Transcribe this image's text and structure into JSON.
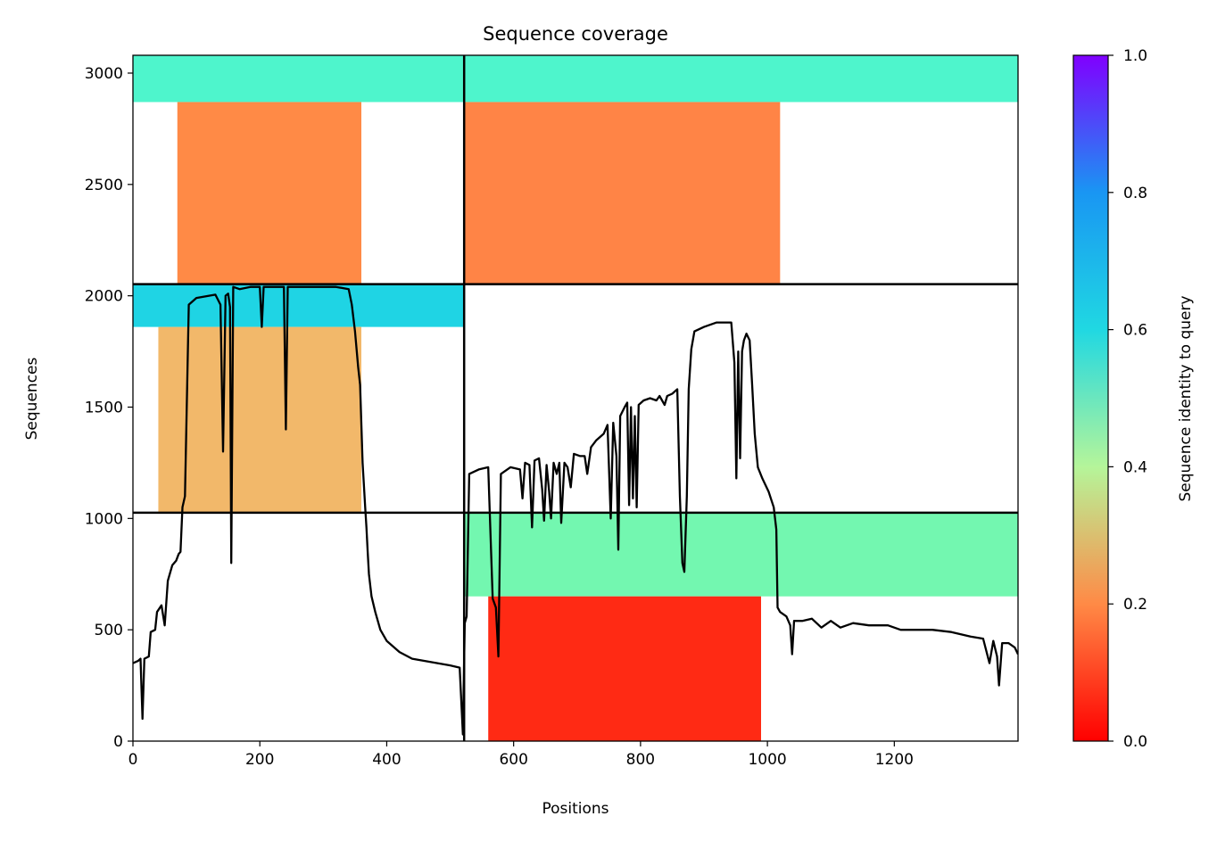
{
  "chart_data": {
    "type": "heatmap",
    "title": "Sequence coverage",
    "xlabel": "Positions",
    "ylabel": "Sequences",
    "xlim": [
      0,
      1395
    ],
    "ylim": [
      0,
      3080
    ],
    "x_ticks": [
      0,
      200,
      400,
      600,
      800,
      1000,
      1200
    ],
    "y_ticks": [
      0,
      500,
      1000,
      1500,
      2000,
      2500,
      3000
    ],
    "colorbar": {
      "label": "Sequence identity to query",
      "colormap": "rainbow_r",
      "range": [
        0.0,
        1.0
      ],
      "ticks": [
        "0.0",
        "0.2",
        "0.4",
        "0.6",
        "0.8",
        "1.0"
      ],
      "stops": [
        "#ff0000",
        "#ff8a46",
        "#b5f59a",
        "#20d8e2",
        "#1996f3",
        "#8000ff"
      ]
    },
    "grid": false,
    "dividers": {
      "vertical_x": [
        522
      ],
      "horizontal_y": [
        1026,
        2052
      ]
    },
    "blocks": [
      {
        "name": "upper-left",
        "x_range": [
          0,
          522
        ],
        "y_range": [
          2052,
          3080
        ],
        "high_identity_band": [
          2870,
          3080
        ],
        "low_identity_range": [
          70,
          360
        ],
        "high_color": "#4ef5cc",
        "low_color": "#ff8a46"
      },
      {
        "name": "upper-right",
        "x_range": [
          522,
          1395
        ],
        "y_range": [
          2052,
          3080
        ],
        "high_identity_band": [
          2870,
          3080
        ],
        "low_identity_range": [
          522,
          1020
        ],
        "high_color": "#4ef5cc",
        "low_color": "#ff8446"
      },
      {
        "name": "middle-left",
        "x_range": [
          0,
          522
        ],
        "y_range": [
          1026,
          2052
        ],
        "high_identity_band": [
          1860,
          2052
        ],
        "low_identity_range": [
          40,
          360
        ],
        "high_color": "#1fd4e4",
        "low_color": "#f2b86a"
      },
      {
        "name": "lower-right",
        "x_range": [
          522,
          1395
        ],
        "y_range": [
          0,
          1026
        ],
        "high_identity_band": [
          650,
          1026
        ],
        "low_identity_range": [
          560,
          990
        ],
        "high_color": "#73f7b0",
        "low_color": "#ff2a14"
      }
    ],
    "series": [
      {
        "color": "#000000",
        "points": [
          [
            0,
            350
          ],
          [
            8,
            360
          ],
          [
            12,
            370
          ],
          [
            15,
            100
          ],
          [
            18,
            370
          ],
          [
            25,
            380
          ],
          [
            28,
            490
          ],
          [
            35,
            500
          ],
          [
            38,
            580
          ],
          [
            45,
            610
          ],
          [
            50,
            520
          ],
          [
            55,
            720
          ],
          [
            62,
            790
          ],
          [
            68,
            810
          ],
          [
            72,
            840
          ],
          [
            75,
            850
          ],
          [
            78,
            1050
          ],
          [
            82,
            1100
          ],
          [
            88,
            1960
          ],
          [
            100,
            1990
          ],
          [
            120,
            2000
          ],
          [
            130,
            2005
          ],
          [
            138,
            1960
          ],
          [
            142,
            1300
          ],
          [
            146,
            2000
          ],
          [
            150,
            2010
          ],
          [
            153,
            1950
          ],
          [
            155,
            800
          ],
          [
            158,
            2040
          ],
          [
            168,
            2030
          ],
          [
            185,
            2040
          ],
          [
            200,
            2040
          ],
          [
            203,
            1860
          ],
          [
            206,
            2040
          ],
          [
            215,
            2040
          ],
          [
            230,
            2040
          ],
          [
            238,
            2040
          ],
          [
            241,
            1400
          ],
          [
            244,
            2040
          ],
          [
            260,
            2040
          ],
          [
            300,
            2040
          ],
          [
            320,
            2040
          ],
          [
            340,
            2030
          ],
          [
            345,
            1960
          ],
          [
            350,
            1840
          ],
          [
            355,
            1680
          ],
          [
            358,
            1600
          ],
          [
            362,
            1250
          ],
          [
            366,
            1050
          ],
          [
            368,
            960
          ],
          [
            370,
            850
          ],
          [
            372,
            750
          ],
          [
            376,
            650
          ],
          [
            382,
            580
          ],
          [
            390,
            500
          ],
          [
            400,
            450
          ],
          [
            420,
            400
          ],
          [
            440,
            370
          ],
          [
            470,
            355
          ],
          [
            500,
            340
          ],
          [
            515,
            330
          ],
          [
            520,
            30
          ],
          [
            523,
            530
          ],
          [
            526,
            560
          ],
          [
            530,
            1200
          ],
          [
            545,
            1220
          ],
          [
            560,
            1230
          ],
          [
            567,
            640
          ],
          [
            572,
            600
          ],
          [
            576,
            380
          ],
          [
            580,
            1200
          ],
          [
            595,
            1230
          ],
          [
            610,
            1220
          ],
          [
            614,
            1090
          ],
          [
            618,
            1250
          ],
          [
            625,
            1240
          ],
          [
            629,
            960
          ],
          [
            633,
            1260
          ],
          [
            640,
            1270
          ],
          [
            645,
            1130
          ],
          [
            648,
            990
          ],
          [
            652,
            1240
          ],
          [
            656,
            1120
          ],
          [
            659,
            1000
          ],
          [
            663,
            1250
          ],
          [
            668,
            1200
          ],
          [
            672,
            1250
          ],
          [
            675,
            980
          ],
          [
            680,
            1250
          ],
          [
            685,
            1230
          ],
          [
            690,
            1140
          ],
          [
            695,
            1290
          ],
          [
            705,
            1280
          ],
          [
            712,
            1280
          ],
          [
            716,
            1200
          ],
          [
            722,
            1320
          ],
          [
            730,
            1350
          ],
          [
            742,
            1380
          ],
          [
            748,
            1420
          ],
          [
            753,
            1000
          ],
          [
            757,
            1430
          ],
          [
            762,
            1280
          ],
          [
            765,
            860
          ],
          [
            768,
            1460
          ],
          [
            775,
            1500
          ],
          [
            779,
            1520
          ],
          [
            782,
            1060
          ],
          [
            785,
            1500
          ],
          [
            788,
            1090
          ],
          [
            791,
            1460
          ],
          [
            794,
            1050
          ],
          [
            797,
            1510
          ],
          [
            805,
            1530
          ],
          [
            815,
            1540
          ],
          [
            825,
            1530
          ],
          [
            830,
            1550
          ],
          [
            838,
            1510
          ],
          [
            842,
            1550
          ],
          [
            850,
            1560
          ],
          [
            858,
            1580
          ],
          [
            862,
            1100
          ],
          [
            866,
            800
          ],
          [
            869,
            760
          ],
          [
            873,
            1100
          ],
          [
            876,
            1580
          ],
          [
            880,
            1760
          ],
          [
            885,
            1840
          ],
          [
            900,
            1860
          ],
          [
            920,
            1880
          ],
          [
            935,
            1880
          ],
          [
            943,
            1880
          ],
          [
            948,
            1700
          ],
          [
            951,
            1180
          ],
          [
            954,
            1750
          ],
          [
            957,
            1270
          ],
          [
            960,
            1750
          ],
          [
            963,
            1800
          ],
          [
            967,
            1830
          ],
          [
            972,
            1800
          ],
          [
            976,
            1600
          ],
          [
            980,
            1380
          ],
          [
            985,
            1230
          ],
          [
            992,
            1180
          ],
          [
            1002,
            1120
          ],
          [
            1010,
            1050
          ],
          [
            1014,
            950
          ],
          [
            1016,
            600
          ],
          [
            1020,
            580
          ],
          [
            1030,
            560
          ],
          [
            1036,
            520
          ],
          [
            1039,
            390
          ],
          [
            1042,
            540
          ],
          [
            1055,
            540
          ],
          [
            1070,
            550
          ],
          [
            1085,
            510
          ],
          [
            1100,
            540
          ],
          [
            1115,
            510
          ],
          [
            1135,
            530
          ],
          [
            1160,
            520
          ],
          [
            1190,
            520
          ],
          [
            1210,
            500
          ],
          [
            1230,
            500
          ],
          [
            1260,
            500
          ],
          [
            1290,
            490
          ],
          [
            1320,
            470
          ],
          [
            1340,
            460
          ],
          [
            1350,
            350
          ],
          [
            1356,
            450
          ],
          [
            1362,
            380
          ],
          [
            1365,
            250
          ],
          [
            1370,
            440
          ],
          [
            1380,
            440
          ],
          [
            1390,
            420
          ],
          [
            1395,
            390
          ]
        ]
      }
    ]
  }
}
